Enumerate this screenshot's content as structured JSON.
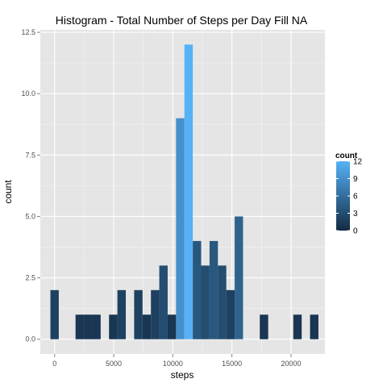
{
  "chart_data": {
    "type": "bar",
    "title": "Histogram - Total Number of Steps per Day Fill NA",
    "xlabel": "steps",
    "ylabel": "count",
    "bin_width": 708.5,
    "bins": [
      {
        "x": 0,
        "count": 2
      },
      {
        "x": 708.5,
        "count": 0
      },
      {
        "x": 1417,
        "count": 0
      },
      {
        "x": 2125.5,
        "count": 1
      },
      {
        "x": 2834,
        "count": 1
      },
      {
        "x": 3542.5,
        "count": 1
      },
      {
        "x": 4251,
        "count": 0
      },
      {
        "x": 4959.5,
        "count": 1
      },
      {
        "x": 5668,
        "count": 2
      },
      {
        "x": 6376.5,
        "count": 0
      },
      {
        "x": 7085,
        "count": 2
      },
      {
        "x": 7793.5,
        "count": 1
      },
      {
        "x": 8502,
        "count": 2
      },
      {
        "x": 9210.5,
        "count": 3
      },
      {
        "x": 9919,
        "count": 1
      },
      {
        "x": 10627.5,
        "count": 9
      },
      {
        "x": 11336,
        "count": 12
      },
      {
        "x": 12044.5,
        "count": 4
      },
      {
        "x": 12753,
        "count": 3
      },
      {
        "x": 13461.5,
        "count": 4
      },
      {
        "x": 14170,
        "count": 3
      },
      {
        "x": 14878.5,
        "count": 2
      },
      {
        "x": 15587,
        "count": 5
      },
      {
        "x": 16295.5,
        "count": 0
      },
      {
        "x": 17004,
        "count": 0
      },
      {
        "x": 17712.5,
        "count": 1
      },
      {
        "x": 18421,
        "count": 0
      },
      {
        "x": 19129.5,
        "count": 0
      },
      {
        "x": 19838,
        "count": 0
      },
      {
        "x": 20546.5,
        "count": 1
      },
      {
        "x": 21255,
        "count": 0
      },
      {
        "x": 21963.5,
        "count": 1
      }
    ],
    "x_ticks": [
      {
        "value": 0,
        "label": "0"
      },
      {
        "value": 5000,
        "label": "5000"
      },
      {
        "value": 10000,
        "label": "10000"
      },
      {
        "value": 15000,
        "label": "15000"
      },
      {
        "value": 20000,
        "label": "20000"
      }
    ],
    "y_ticks": [
      {
        "value": 0,
        "label": "0.0"
      },
      {
        "value": 2.5,
        "label": "2.5"
      },
      {
        "value": 5,
        "label": "5.0"
      },
      {
        "value": 7.5,
        "label": "7.5"
      },
      {
        "value": 10,
        "label": "10.0"
      },
      {
        "value": 12.5,
        "label": "12.5"
      }
    ],
    "xlim": [
      -1208,
      22867
    ],
    "ylim": [
      -0.6,
      12.6
    ],
    "grid": true,
    "legend": {
      "title": "count",
      "position": "right",
      "low_color": "#132b43",
      "high_color": "#56b1f7",
      "range": [
        0,
        12
      ],
      "breaks": [
        {
          "value": 0,
          "label": "0"
        },
        {
          "value": 3,
          "label": "3"
        },
        {
          "value": 6,
          "label": "6"
        },
        {
          "value": 9,
          "label": "9"
        },
        {
          "value": 12,
          "label": "12"
        }
      ]
    },
    "panel_background": "#e5e5e5",
    "gridline_color": "#ffffff"
  }
}
